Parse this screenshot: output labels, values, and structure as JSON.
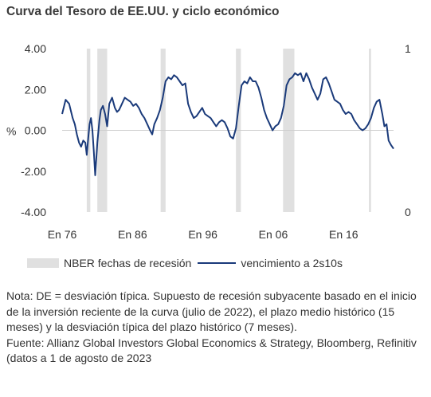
{
  "title": "Curva del Tesoro de EE.UU. y ciclo económico",
  "chart_data": {
    "type": "line",
    "title": "Curva del Tesoro de EE.UU. y ciclo económico",
    "ylabel": "%",
    "ylim": [
      -4,
      4
    ],
    "yticks": [
      "4.00",
      "2.00",
      "0.00",
      "-2.00",
      "-4.00"
    ],
    "y2lim": [
      0,
      1
    ],
    "y2ticks": [
      "1",
      "0"
    ],
    "xlim": [
      1976.5,
      2023.6
    ],
    "xticks": [
      {
        "label": "En 76",
        "value": 1976
      },
      {
        "label": "En 86",
        "value": 1986
      },
      {
        "label": "En 96",
        "value": 1996
      },
      {
        "label": "En 06",
        "value": 2006
      },
      {
        "label": "En 16",
        "value": 2016
      }
    ],
    "recessions": [
      [
        1980.0,
        1980.5
      ],
      [
        1981.5,
        1982.9
      ],
      [
        1990.5,
        1991.2
      ],
      [
        2001.2,
        2001.9
      ],
      [
        2007.9,
        2009.5
      ],
      [
        2020.1,
        2020.4
      ]
    ],
    "series": [
      {
        "name": "vencimiento a 2s10s",
        "x": [
          1976.5,
          1977.0,
          1977.5,
          1978.0,
          1978.3,
          1978.6,
          1978.9,
          1979.2,
          1979.5,
          1979.8,
          1980.0,
          1980.2,
          1980.4,
          1980.6,
          1980.8,
          1981.0,
          1981.2,
          1981.5,
          1981.8,
          1982.0,
          1982.3,
          1982.6,
          1982.9,
          1983.2,
          1983.6,
          1984.0,
          1984.3,
          1984.6,
          1985.0,
          1985.4,
          1985.8,
          1986.2,
          1986.6,
          1987.0,
          1987.4,
          1987.8,
          1988.2,
          1988.6,
          1989.0,
          1989.3,
          1989.6,
          1990.0,
          1990.4,
          1990.8,
          1991.2,
          1991.6,
          1992.0,
          1992.4,
          1992.8,
          1993.2,
          1993.6,
          1994.0,
          1994.4,
          1994.8,
          1995.2,
          1995.6,
          1996.0,
          1996.4,
          1996.8,
          1997.2,
          1997.6,
          1998.0,
          1998.4,
          1998.8,
          1999.2,
          1999.6,
          2000.0,
          2000.4,
          2000.8,
          2001.2,
          2001.6,
          2002.0,
          2002.4,
          2002.8,
          2003.2,
          2003.6,
          2004.0,
          2004.4,
          2004.8,
          2005.2,
          2005.6,
          2006.0,
          2006.4,
          2006.8,
          2007.2,
          2007.6,
          2008.0,
          2008.4,
          2008.8,
          2009.2,
          2009.6,
          2010.0,
          2010.4,
          2010.8,
          2011.2,
          2011.6,
          2012.0,
          2012.4,
          2012.8,
          2013.2,
          2013.6,
          2014.0,
          2014.4,
          2014.8,
          2015.2,
          2015.6,
          2016.0,
          2016.4,
          2016.8,
          2017.2,
          2017.6,
          2018.0,
          2018.4,
          2018.8,
          2019.2,
          2019.6,
          2020.0,
          2020.4,
          2020.8,
          2021.2,
          2021.6,
          2022.0,
          2022.3,
          2022.6,
          2022.9,
          2023.2,
          2023.6
        ],
        "values": [
          0.8,
          1.5,
          1.3,
          0.6,
          0.3,
          -0.2,
          -0.6,
          -0.8,
          -0.5,
          -0.6,
          -1.2,
          -0.4,
          0.3,
          0.6,
          0.0,
          -1.0,
          -2.2,
          -0.6,
          0.5,
          1.0,
          1.2,
          0.8,
          0.2,
          1.3,
          1.6,
          1.1,
          0.9,
          1.0,
          1.3,
          1.6,
          1.5,
          1.4,
          1.2,
          1.3,
          1.1,
          0.8,
          0.6,
          0.3,
          0.0,
          -0.2,
          0.3,
          0.6,
          1.0,
          1.6,
          2.4,
          2.6,
          2.5,
          2.7,
          2.6,
          2.4,
          2.2,
          2.3,
          1.3,
          0.9,
          0.6,
          0.7,
          0.9,
          1.1,
          0.8,
          0.7,
          0.6,
          0.4,
          0.2,
          0.4,
          0.5,
          0.4,
          0.1,
          -0.3,
          -0.4,
          0.1,
          1.2,
          2.2,
          2.4,
          2.3,
          2.6,
          2.4,
          2.4,
          2.1,
          1.6,
          1.0,
          0.6,
          0.3,
          0.0,
          0.2,
          0.3,
          0.6,
          1.2,
          2.2,
          2.5,
          2.6,
          2.8,
          2.7,
          2.8,
          2.4,
          2.8,
          2.5,
          2.1,
          1.8,
          1.5,
          1.8,
          2.5,
          2.6,
          2.3,
          1.9,
          1.5,
          1.4,
          1.3,
          1.0,
          0.8,
          0.9,
          0.8,
          0.5,
          0.3,
          0.1,
          0.0,
          0.1,
          0.3,
          0.6,
          1.1,
          1.4,
          1.5,
          0.8,
          0.2,
          0.3,
          -0.5,
          -0.7,
          -0.9
        ]
      }
    ]
  },
  "legend": {
    "recession_label": "NBER fechas de recesión",
    "series_label": "vencimiento a 2s10s"
  },
  "notes": [
    "Nota: DE = desviación típica. Supuesto de recesión subyacente basado en el inicio de la inversión reciente de la curva (julio de 2022), el plazo medio histórico (15 meses) y la desviación típica del plazo histórico (7 meses).",
    "Fuente: Allianz Global Investors Global Economics & Strategy, Bloomberg, Refinitiv (datos a 1 de agosto de 2023"
  ],
  "colors": {
    "line": "#1a3a7a",
    "recession": "#e0e0e0",
    "zero_line": "#cfcfcf"
  }
}
